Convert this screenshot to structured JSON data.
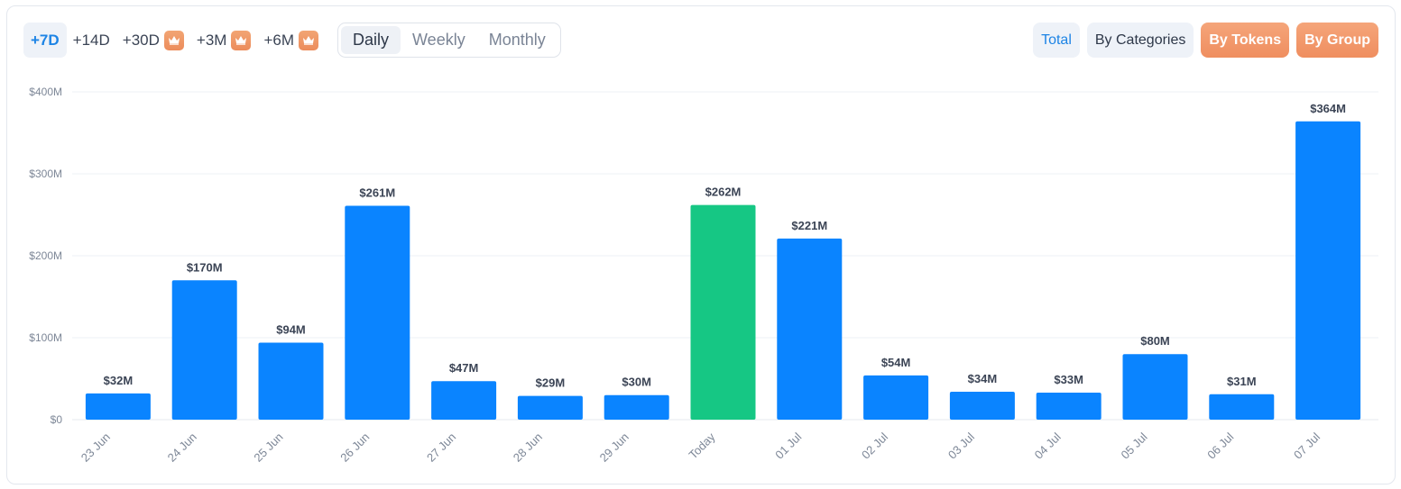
{
  "range_options": [
    {
      "label": "+7D",
      "active": true,
      "premium": false
    },
    {
      "label": "+14D",
      "active": false,
      "premium": false
    },
    {
      "label": "+30D",
      "active": false,
      "premium": true
    },
    {
      "label": "+3M",
      "active": false,
      "premium": true
    },
    {
      "label": "+6M",
      "active": false,
      "premium": true
    }
  ],
  "period_options": [
    {
      "label": "Daily",
      "active": true
    },
    {
      "label": "Weekly",
      "active": false
    },
    {
      "label": "Monthly",
      "active": false
    }
  ],
  "group_options": [
    {
      "label": "Total",
      "active": true,
      "premium": false
    },
    {
      "label": "By Categories",
      "active": false,
      "premium": false
    },
    {
      "label": "By Tokens",
      "active": false,
      "premium": true
    },
    {
      "label": "By Group",
      "active": false,
      "premium": true
    }
  ],
  "colors": {
    "bar": "#0a84ff",
    "today_bar": "#16c784",
    "today_label": "#16c784",
    "premium": "#ef8e5f",
    "active_text": "#1d84e5"
  },
  "chart_data": {
    "type": "bar",
    "categories": [
      "23 Jun",
      "24 Jun",
      "25 Jun",
      "26 Jun",
      "27 Jun",
      "28 Jun",
      "29 Jun",
      "Today",
      "01 Jul",
      "02 Jul",
      "03 Jul",
      "04 Jul",
      "05 Jul",
      "06 Jul",
      "07 Jul"
    ],
    "values": [
      32,
      170,
      94,
      261,
      47,
      29,
      30,
      262,
      221,
      54,
      34,
      33,
      80,
      31,
      364
    ],
    "value_labels": [
      "$32M",
      "$170M",
      "$94M",
      "$261M",
      "$47M",
      "$29M",
      "$30M",
      "$262M",
      "$221M",
      "$54M",
      "$34M",
      "$33M",
      "$80M",
      "$31M",
      "$364M"
    ],
    "highlight_category": "Today",
    "y_ticks": [
      0,
      100,
      200,
      300,
      400
    ],
    "y_tick_labels": [
      "$0",
      "$100M",
      "$200M",
      "$300M",
      "$400M"
    ],
    "ylim": [
      0,
      400
    ],
    "grid": true,
    "title": "",
    "xlabel": "",
    "ylabel": ""
  }
}
